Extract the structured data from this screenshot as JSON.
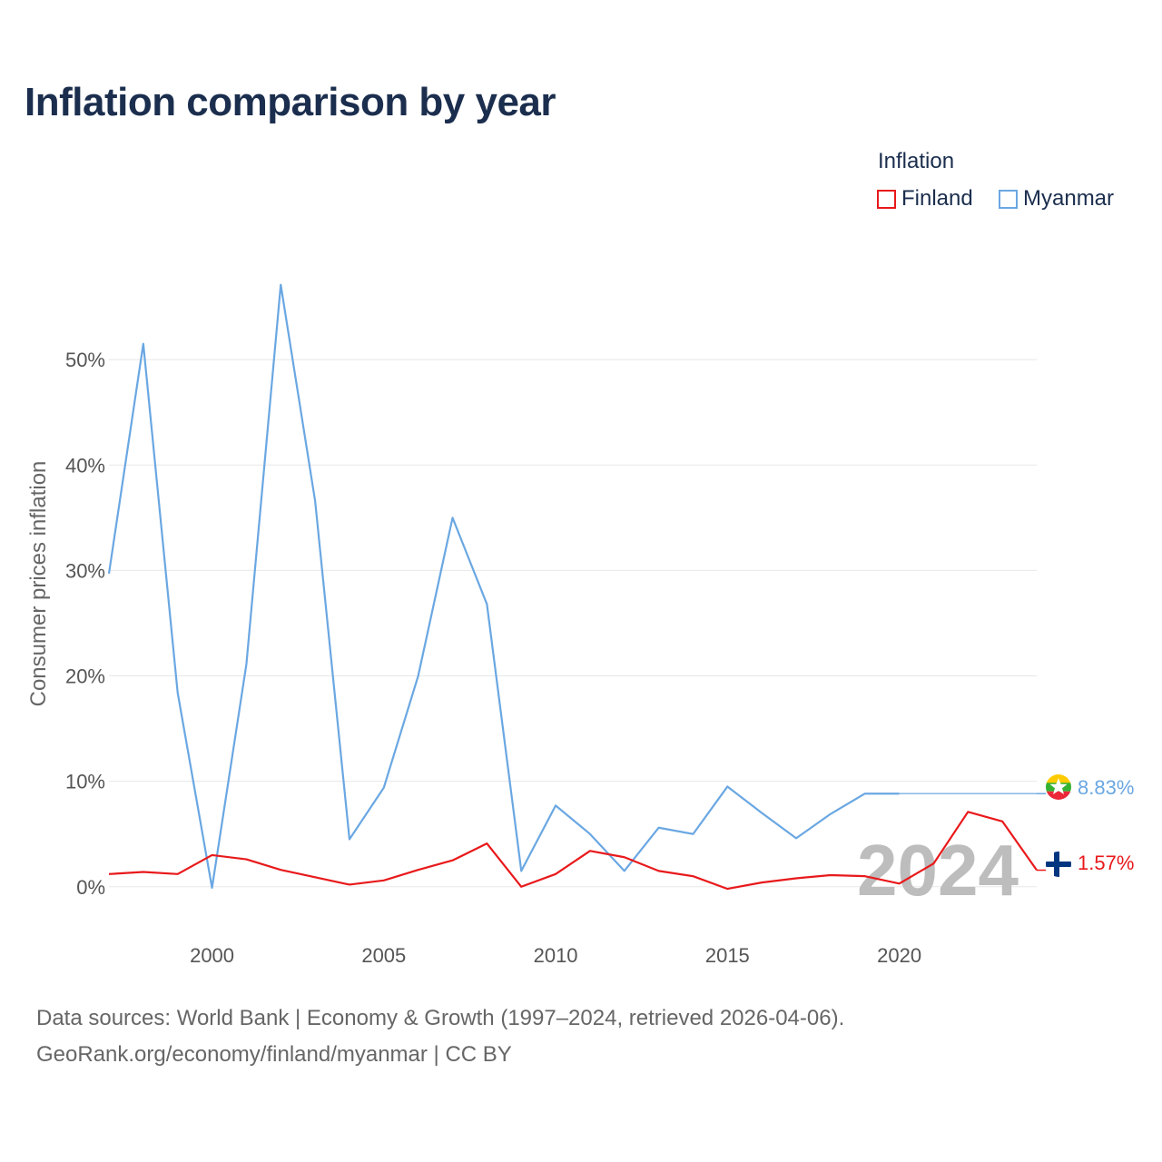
{
  "title": "Inflation comparison by year",
  "legend": {
    "title": "Inflation",
    "items": [
      {
        "name": "Finland",
        "color": "#e8191b"
      },
      {
        "name": "Myanmar",
        "color": "#6aa7e2"
      }
    ]
  },
  "current_year": "2024",
  "end_labels": {
    "finland": "1.57%",
    "myanmar": "8.83%"
  },
  "flag_icons": {
    "finland": "finland-flag-icon",
    "myanmar": "myanmar-flag-icon"
  },
  "footer": {
    "line1": "Data sources: World Bank | Economy & Growth (1997–2024, retrieved 2026-04-06).",
    "line2": "GeoRank.org/economy/finland/myanmar | CC BY"
  },
  "chart_data": {
    "type": "line",
    "ylabel": "Consumer prices inflation",
    "xlabel": "",
    "xlim": [
      1997,
      2024
    ],
    "ylim": [
      -2,
      60
    ],
    "x_ticks": [
      2000,
      2005,
      2010,
      2015,
      2020
    ],
    "y_ticks": [
      0,
      10,
      20,
      30,
      40,
      50
    ],
    "y_tick_labels": [
      "0%",
      "10%",
      "20%",
      "30%",
      "40%",
      "50%"
    ],
    "grid": true,
    "x": [
      1997,
      1998,
      1999,
      2000,
      2001,
      2002,
      2003,
      2004,
      2005,
      2006,
      2007,
      2008,
      2009,
      2010,
      2011,
      2012,
      2013,
      2014,
      2015,
      2016,
      2017,
      2018,
      2019,
      2020,
      2021,
      2022,
      2023,
      2024
    ],
    "series": [
      {
        "name": "Myanmar",
        "color": "#6aa7e2",
        "values": [
          29.7,
          51.5,
          18.4,
          -0.1,
          21.1,
          57.1,
          36.6,
          4.5,
          9.4,
          20.0,
          35.0,
          26.8,
          1.5,
          7.7,
          5.0,
          1.5,
          5.6,
          5.0,
          9.5,
          7.0,
          4.6,
          6.9,
          8.83,
          8.83,
          8.83,
          8.83,
          8.83,
          8.83
        ],
        "estimated_from_year": 2020
      },
      {
        "name": "Finland",
        "color": "#e8191b",
        "values": [
          1.2,
          1.4,
          1.2,
          3.0,
          2.6,
          1.6,
          0.9,
          0.2,
          0.6,
          1.6,
          2.5,
          4.1,
          0.0,
          1.2,
          3.4,
          2.8,
          1.5,
          1.0,
          -0.2,
          0.4,
          0.8,
          1.1,
          1.0,
          0.3,
          2.2,
          7.1,
          6.2,
          1.57
        ]
      }
    ]
  }
}
